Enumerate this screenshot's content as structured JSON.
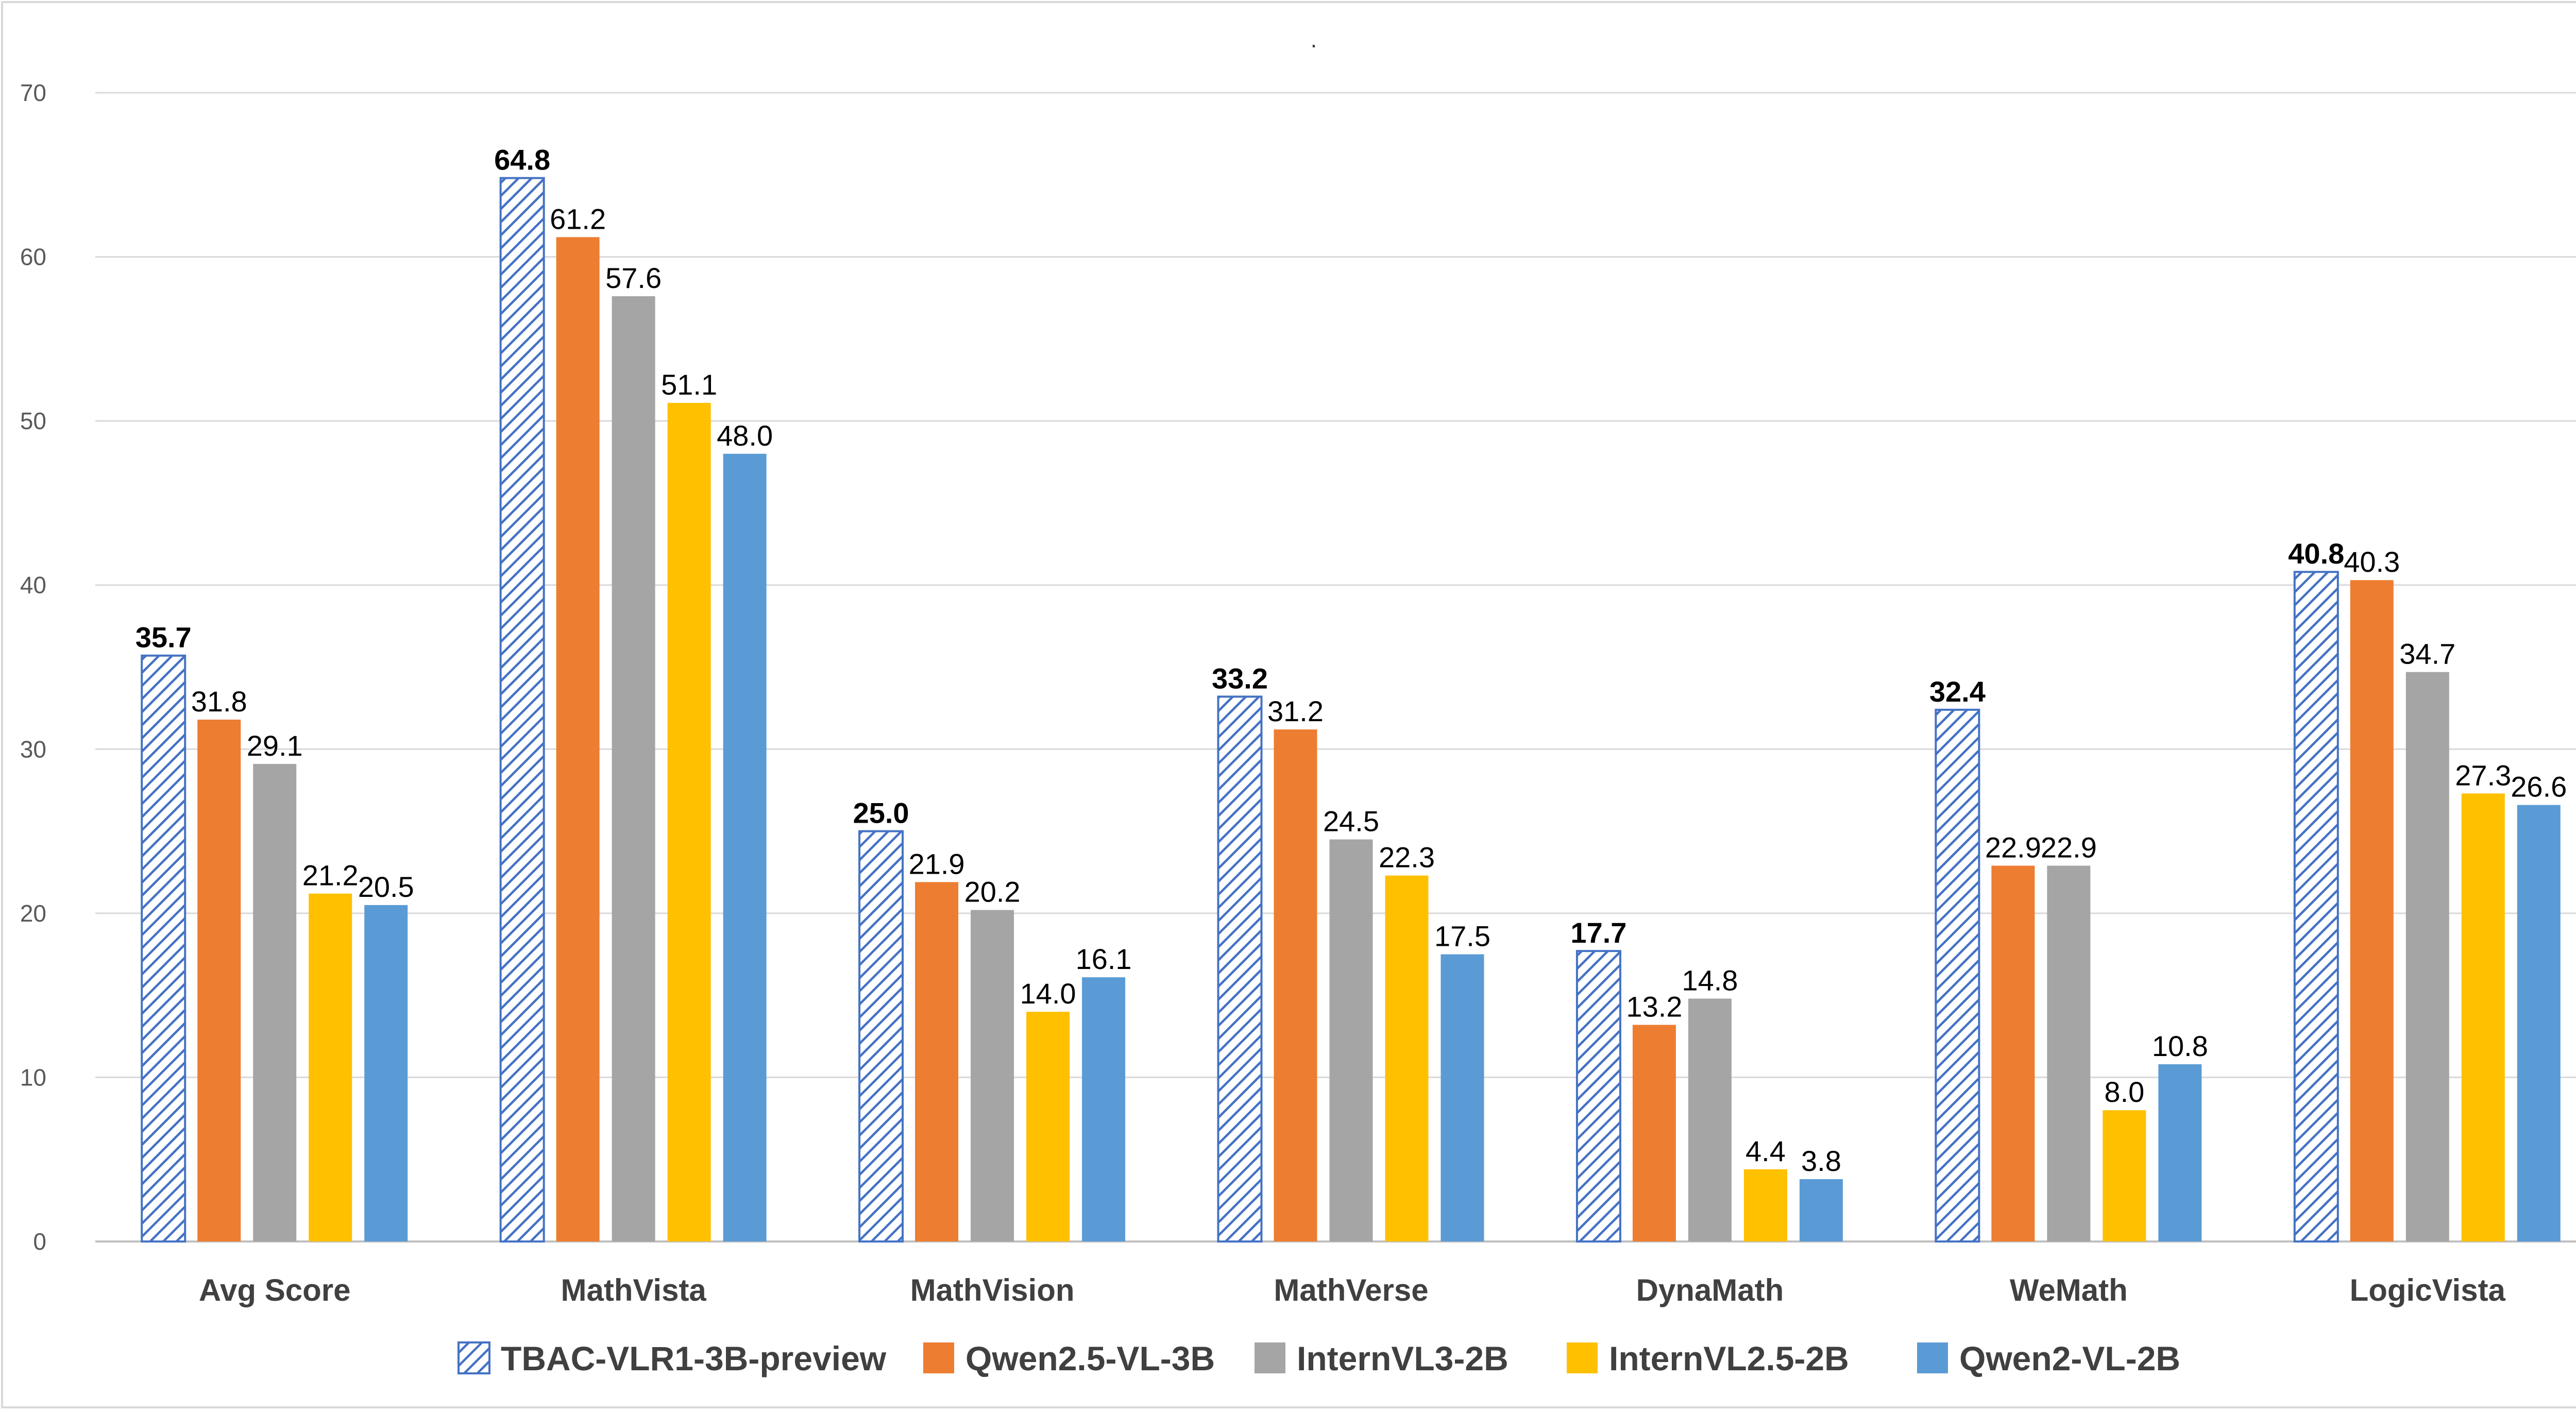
{
  "chart_data": {
    "type": "bar",
    "title": ".",
    "xlabel": "",
    "ylabel": "",
    "ylim": [
      0,
      70
    ],
    "yticks": [
      0,
      10,
      20,
      30,
      40,
      50,
      60,
      70
    ],
    "grid": true,
    "legend_position": "bottom",
    "categories": [
      "Avg Score",
      "MathVista",
      "MathVision",
      "MathVerse",
      "DynaMath",
      "WeMath",
      "LogicVista"
    ],
    "series": [
      {
        "name": "TBAC-VLR1-3B-preview",
        "color": "#4472C4",
        "pattern": "hatch",
        "bold_labels": true,
        "values": [
          35.7,
          64.8,
          25.0,
          33.2,
          17.7,
          32.4,
          40.8
        ],
        "labels": [
          "35.7",
          "64.8",
          "25.0",
          "33.2",
          "17.7",
          "32.4",
          "40.8"
        ]
      },
      {
        "name": "Qwen2.5-VL-3B",
        "color": "#ED7D31",
        "values": [
          31.8,
          61.2,
          21.9,
          31.2,
          13.2,
          22.9,
          40.3
        ],
        "labels": [
          "31.8",
          "61.2",
          "21.9",
          "31.2",
          "13.2",
          "22.9",
          "40.3"
        ]
      },
      {
        "name": "InternVL3-2B",
        "color": "#A5A5A5",
        "values": [
          29.1,
          57.6,
          20.2,
          24.5,
          14.8,
          22.9,
          34.7
        ],
        "labels": [
          "29.1",
          "57.6",
          "20.2",
          "24.5",
          "14.8",
          "22.9",
          "34.7"
        ]
      },
      {
        "name": "InternVL2.5-2B",
        "color": "#FFC000",
        "values": [
          21.2,
          51.1,
          14.0,
          22.3,
          4.4,
          8.0,
          27.3
        ],
        "labels": [
          "21.2",
          "51.1",
          "14.0",
          "22.3",
          "4.4",
          "8.0",
          "27.3"
        ]
      },
      {
        "name": "Qwen2-VL-2B",
        "color": "#5B9BD5",
        "values": [
          20.5,
          48.0,
          16.1,
          17.5,
          3.8,
          10.8,
          26.6
        ],
        "labels": [
          "20.5",
          "48.0",
          "16.1",
          "17.5",
          "3.8",
          "10.8",
          "26.6"
        ]
      }
    ]
  },
  "colors": {
    "grid": "#d9d9d9",
    "axis": "#bfbfbf",
    "border": "#d9d9d9"
  }
}
